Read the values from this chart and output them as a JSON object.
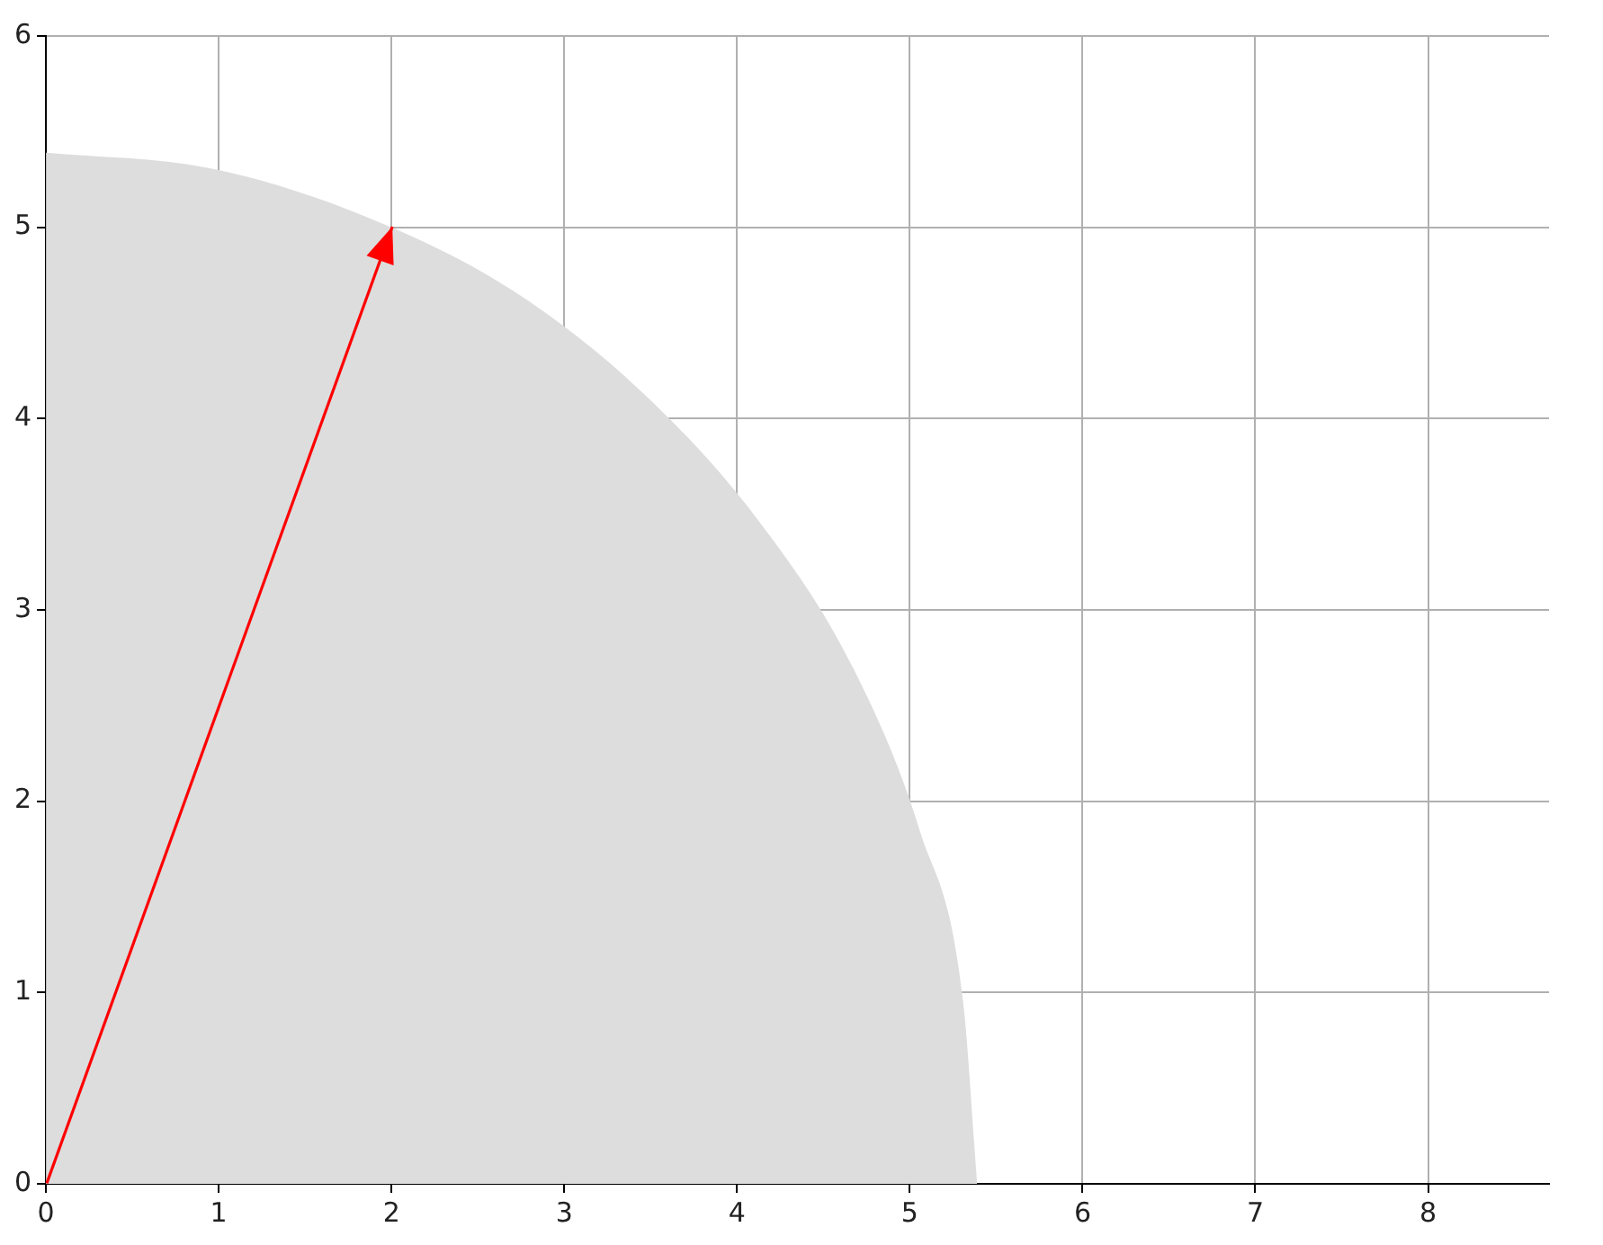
{
  "chart_data": {
    "type": "line",
    "xlim": [
      0,
      8.7
    ],
    "ylim": [
      0,
      6
    ],
    "xticks": [
      0,
      1,
      2,
      3,
      4,
      5,
      6,
      7,
      8
    ],
    "yticks": [
      0,
      1,
      2,
      3,
      4,
      5,
      6
    ],
    "grid": true,
    "legend": false,
    "marker": "none",
    "series": [
      {
        "type": "area",
        "color": "#dddddd",
        "x": [
          0,
          0.94,
          1.84,
          2.7,
          3.46,
          4.13,
          4.67,
          5.06,
          5.31,
          5.39
        ],
        "values": [
          5.39,
          5.31,
          5.06,
          4.67,
          4.13,
          3.46,
          2.7,
          1.84,
          0.94,
          0
        ]
      },
      {
        "color": "#ff0000",
        "x": [
          0,
          2
        ],
        "values": [
          0,
          5
        ]
      }
    ]
  }
}
